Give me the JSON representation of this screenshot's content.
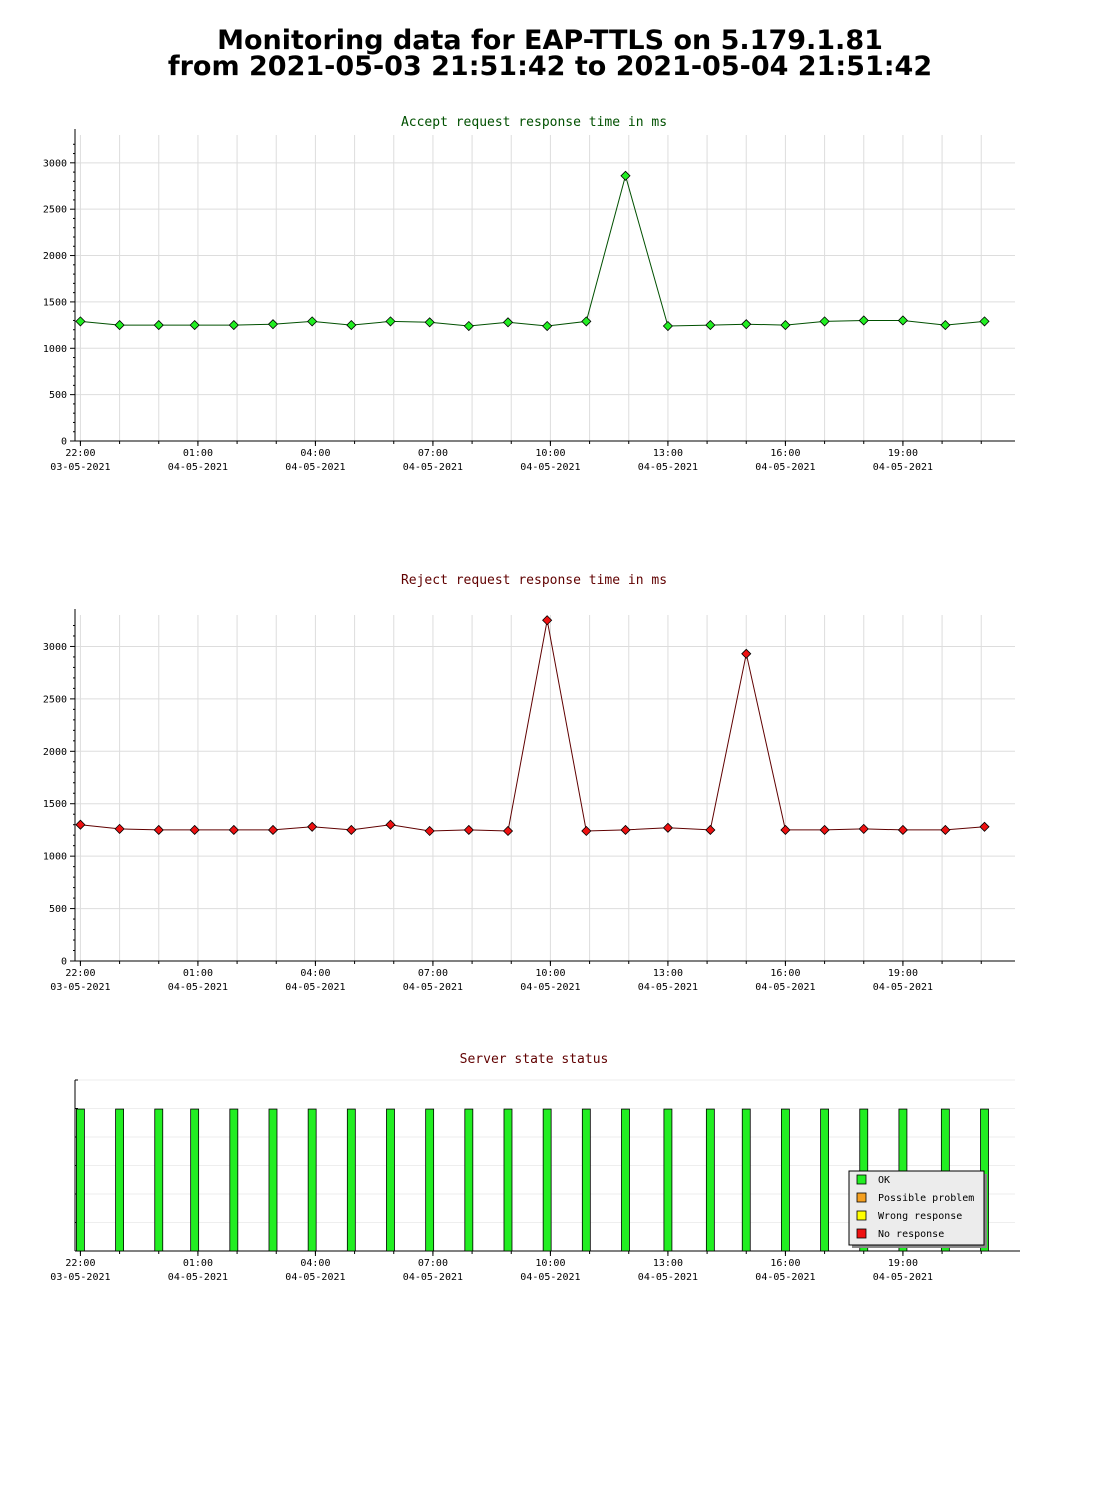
{
  "header": {
    "title_line1": "Monitoring data for EAP-TTLS on 5.179.1.81",
    "title_line2": "from 2021-05-03 21:51:42 to 2021-05-04 21:51:42"
  },
  "colors": {
    "accept_line": "#005000",
    "accept_marker": "#22ee22",
    "reject_line": "#600000",
    "reject_marker": "#ee1111",
    "ok": "#22ee22",
    "possible_problem": "#f5a020",
    "wrong_response": "#ffff00",
    "no_response": "#ee1111",
    "grid": "#dddddd"
  },
  "chart_data": [
    {
      "type": "line",
      "title": "Accept request response time in ms",
      "x_start": "2021-05-03 21:51:42",
      "x_end": "2021-05-04 21:51:42",
      "x": [
        "2021-05-03 22:00",
        "2021-05-03 23:00",
        "2021-05-04 00:00",
        "2021-05-04 00:55",
        "2021-05-04 01:55",
        "2021-05-04 02:55",
        "2021-05-04 03:55",
        "2021-05-04 04:55",
        "2021-05-04 05:55",
        "2021-05-04 06:55",
        "2021-05-04 07:55",
        "2021-05-04 08:55",
        "2021-05-04 09:55",
        "2021-05-04 10:55",
        "2021-05-04 11:55",
        "2021-05-04 13:00",
        "2021-05-04 14:05",
        "2021-05-04 15:00",
        "2021-05-04 16:00",
        "2021-05-04 17:00",
        "2021-05-04 18:00",
        "2021-05-04 19:00",
        "2021-05-04 20:05",
        "2021-05-04 21:05"
      ],
      "values": [
        1290,
        1250,
        1250,
        1250,
        1250,
        1260,
        1290,
        1250,
        1290,
        1280,
        1240,
        1280,
        1240,
        1290,
        2860,
        1240,
        1250,
        1260,
        1250,
        1290,
        1300,
        1300,
        1250,
        1290
      ],
      "ylim": [
        0,
        3300
      ],
      "y_ticks": [
        "0",
        "500",
        "1000",
        "1500",
        "2000",
        "2500",
        "3000"
      ],
      "x_ticks": [
        {
          "time": "22:00",
          "date": "03-05-2021"
        },
        {
          "time": "01:00",
          "date": "04-05-2021"
        },
        {
          "time": "04:00",
          "date": "04-05-2021"
        },
        {
          "time": "07:00",
          "date": "04-05-2021"
        },
        {
          "time": "10:00",
          "date": "04-05-2021"
        },
        {
          "time": "13:00",
          "date": "04-05-2021"
        },
        {
          "time": "16:00",
          "date": "04-05-2021"
        },
        {
          "time": "19:00",
          "date": "04-05-2021"
        }
      ],
      "grid": true
    },
    {
      "type": "line",
      "title": "Reject request response time in ms",
      "x_start": "2021-05-03 21:51:42",
      "x_end": "2021-05-04 21:51:42",
      "x": [
        "2021-05-03 22:00",
        "2021-05-03 23:00",
        "2021-05-04 00:00",
        "2021-05-04 00:55",
        "2021-05-04 01:55",
        "2021-05-04 02:55",
        "2021-05-04 03:55",
        "2021-05-04 04:55",
        "2021-05-04 05:55",
        "2021-05-04 06:55",
        "2021-05-04 07:55",
        "2021-05-04 08:55",
        "2021-05-04 09:55",
        "2021-05-04 10:55",
        "2021-05-04 11:55",
        "2021-05-04 13:00",
        "2021-05-04 14:05",
        "2021-05-04 15:00",
        "2021-05-04 16:00",
        "2021-05-04 17:00",
        "2021-05-04 18:00",
        "2021-05-04 19:00",
        "2021-05-04 20:05",
        "2021-05-04 21:05"
      ],
      "values": [
        1300,
        1260,
        1250,
        1250,
        1250,
        1250,
        1280,
        1250,
        1300,
        1240,
        1250,
        1240,
        3250,
        1240,
        1250,
        1270,
        1250,
        2930,
        1250,
        1250,
        1260,
        1250,
        1250,
        1280
      ],
      "ylim": [
        0,
        3300
      ],
      "y_ticks": [
        "0",
        "500",
        "1000",
        "1500",
        "2000",
        "2500",
        "3000"
      ],
      "x_ticks": [
        {
          "time": "22:00",
          "date": "03-05-2021"
        },
        {
          "time": "01:00",
          "date": "04-05-2021"
        },
        {
          "time": "04:00",
          "date": "04-05-2021"
        },
        {
          "time": "07:00",
          "date": "04-05-2021"
        },
        {
          "time": "10:00",
          "date": "04-05-2021"
        },
        {
          "time": "13:00",
          "date": "04-05-2021"
        },
        {
          "time": "16:00",
          "date": "04-05-2021"
        },
        {
          "time": "19:00",
          "date": "04-05-2021"
        }
      ],
      "grid": true
    },
    {
      "type": "bar",
      "title": "Server state status",
      "x_start": "2021-05-03 21:51:42",
      "x_end": "2021-05-04 21:51:42",
      "x": [
        "2021-05-03 22:00",
        "2021-05-03 23:00",
        "2021-05-04 00:00",
        "2021-05-04 00:55",
        "2021-05-04 01:55",
        "2021-05-04 02:55",
        "2021-05-04 03:55",
        "2021-05-04 04:55",
        "2021-05-04 05:55",
        "2021-05-04 06:55",
        "2021-05-04 07:55",
        "2021-05-04 08:55",
        "2021-05-04 09:55",
        "2021-05-04 10:55",
        "2021-05-04 11:55",
        "2021-05-04 13:00",
        "2021-05-04 14:05",
        "2021-05-04 15:00",
        "2021-05-04 16:00",
        "2021-05-04 17:00",
        "2021-05-04 18:00",
        "2021-05-04 19:00",
        "2021-05-04 20:05",
        "2021-05-04 21:05"
      ],
      "states": [
        "OK",
        "OK",
        "OK",
        "OK",
        "OK",
        "OK",
        "OK",
        "OK",
        "OK",
        "OK",
        "OK",
        "OK",
        "OK",
        "OK",
        "OK",
        "OK",
        "OK",
        "OK",
        "OK",
        "OK",
        "OK",
        "OK",
        "OK",
        "OK"
      ],
      "level": 0.83,
      "x_ticks": [
        {
          "time": "22:00",
          "date": "03-05-2021"
        },
        {
          "time": "01:00",
          "date": "04-05-2021"
        },
        {
          "time": "04:00",
          "date": "04-05-2021"
        },
        {
          "time": "07:00",
          "date": "04-05-2021"
        },
        {
          "time": "10:00",
          "date": "04-05-2021"
        },
        {
          "time": "13:00",
          "date": "04-05-2021"
        },
        {
          "time": "16:00",
          "date": "04-05-2021"
        },
        {
          "time": "19:00",
          "date": "04-05-2021"
        }
      ],
      "legend": {
        "placement": "bottom-right",
        "entries": [
          {
            "label": "OK",
            "color": "#22ee22"
          },
          {
            "label": "Possible problem",
            "color": "#f5a020"
          },
          {
            "label": "Wrong response",
            "color": "#ffff00"
          },
          {
            "label": "No response",
            "color": "#ee1111"
          }
        ]
      }
    }
  ]
}
